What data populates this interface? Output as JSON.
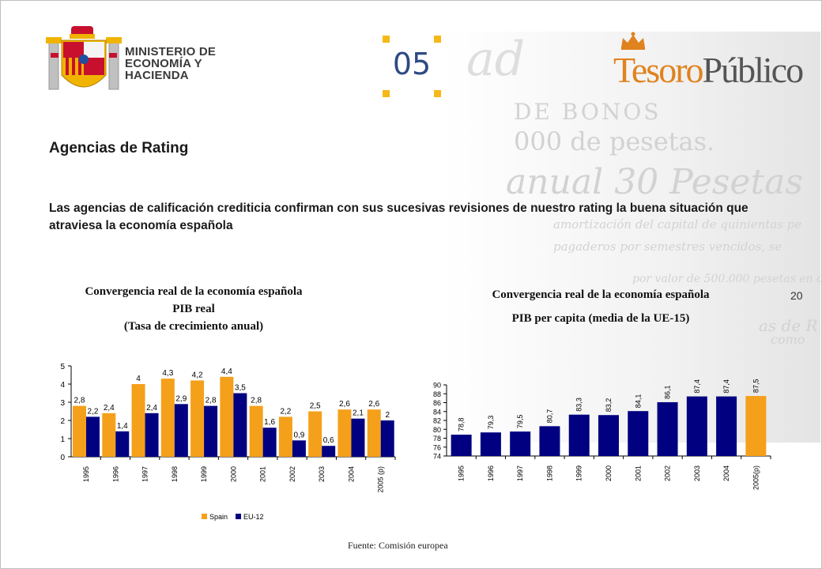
{
  "header": {
    "ministry_name": "MINISTERIO DE ECONOMÍA Y HACIENDA",
    "section_number": "05",
    "brand_part1": "Tesoro",
    "brand_part2": "Público"
  },
  "slide": {
    "title": "Agencias de Rating",
    "intro": "Las agencias de calificación crediticia confirman con sus sucesivas revisiones de nuestro rating la buena situación que atraviesa la economía española",
    "page_number": "20",
    "source": "Fuente: Comisión europea"
  },
  "colors": {
    "spain": "#f5a01a",
    "eu": "#000080",
    "accent": "#f6b817",
    "brand_blue": "#2d4a84"
  },
  "chart_data": [
    {
      "type": "bar",
      "title_lines": [
        "Convergencia real de la economía española",
        "PIB real",
        "(Tasa de crecimiento anual)"
      ],
      "categories": [
        "1995",
        "1996",
        "1997",
        "1998",
        "1999",
        "2000",
        "2001",
        "2002",
        "2003",
        "2004",
        "2005 (p)"
      ],
      "series": [
        {
          "name": "Spain",
          "values": [
            2.8,
            2.4,
            4,
            4.3,
            4.2,
            4.4,
            2.8,
            2.2,
            2.5,
            2.6,
            2.6
          ],
          "labels": [
            "2,8",
            "2,4",
            "4",
            "4,3",
            "4,2",
            "4,4",
            "2,8",
            "2,2",
            "2,5",
            "2,6",
            "2,6"
          ]
        },
        {
          "name": "EU-12",
          "values": [
            2.2,
            1.4,
            2.4,
            2.9,
            2.8,
            3.5,
            1.6,
            0.9,
            0.6,
            2.1,
            2
          ],
          "labels": [
            "2,2",
            "1,4",
            "2,4",
            "2,9",
            "2,8",
            "3,5",
            "1,6",
            "0,9",
            "0,6",
            "2,1",
            "2"
          ]
        }
      ],
      "ylim": [
        0,
        5
      ],
      "yticks": [
        "0",
        "1",
        "2",
        "3",
        "4",
        "5"
      ],
      "legend": "bottom"
    },
    {
      "type": "bar",
      "title_lines": [
        "Convergencia real de la economía española",
        "PIB per capita (media de la UE-15)"
      ],
      "categories": [
        "1995",
        "1996",
        "1997",
        "1998",
        "1999",
        "2000",
        "2001",
        "2002",
        "2003",
        "2004",
        "2005(p)"
      ],
      "values": [
        78.8,
        79.3,
        79.5,
        80.7,
        83.3,
        83.2,
        84.1,
        86.1,
        87.4,
        87.4,
        87.5
      ],
      "labels": [
        "78,8",
        "79,3",
        "79,5",
        "80,7",
        "83,3",
        "83,2",
        "84,1",
        "86,1",
        "87,4",
        "87,4",
        "87,5"
      ],
      "highlight_last": true,
      "ylim": [
        74,
        90
      ],
      "yticks": [
        "74",
        "76",
        "78",
        "80",
        "82",
        "84",
        "86",
        "88",
        "90"
      ]
    }
  ]
}
